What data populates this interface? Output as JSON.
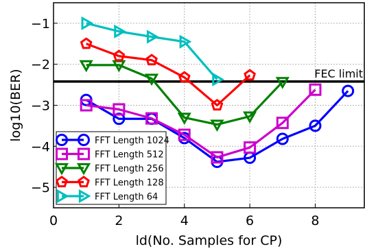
{
  "chart_data": {
    "type": "line",
    "title": "",
    "xlabel": "ld(No. Samples for CP)",
    "ylabel": "log10(BER)",
    "xlim": [
      0,
      9.5
    ],
    "ylim": [
      -5.5,
      -0.5
    ],
    "xticks": [
      "0",
      "2",
      "4",
      "6",
      "8"
    ],
    "yticks": [
      "−1",
      "−2",
      "−3",
      "−4",
      "−5"
    ],
    "grid": true,
    "legend_position": "lower-left",
    "reference_line": {
      "label": "FEC limit",
      "y": -2.42,
      "color": "#000000"
    },
    "series": [
      {
        "name": "FFT Length 1024",
        "color": "#0000ff",
        "marker": "circle",
        "x": [
          1,
          2,
          3,
          4,
          5,
          6,
          7,
          8,
          9
        ],
        "y": [
          -2.87,
          -3.33,
          -3.33,
          -3.8,
          -4.38,
          -4.28,
          -3.82,
          -3.5,
          -2.65
        ]
      },
      {
        "name": "FFT Length 512",
        "color": "#cc00cc",
        "marker": "square",
        "x": [
          1,
          2,
          3,
          4,
          5,
          6,
          7,
          8
        ],
        "y": [
          -3.0,
          -3.1,
          -3.32,
          -3.72,
          -4.27,
          -4.03,
          -3.43,
          -2.62
        ]
      },
      {
        "name": "FFT Length 256",
        "color": "#008000",
        "marker": "triangle-down",
        "x": [
          1,
          2,
          3,
          4,
          5,
          6,
          7
        ],
        "y": [
          -2.02,
          -2.02,
          -2.35,
          -3.3,
          -3.47,
          -3.27,
          -2.43
        ]
      },
      {
        "name": "FFT Length 128",
        "color": "#ff0000",
        "marker": "pentagon",
        "x": [
          1,
          2,
          3,
          4,
          5,
          6
        ],
        "y": [
          -1.5,
          -1.8,
          -1.9,
          -2.32,
          -3.0,
          -2.27
        ]
      },
      {
        "name": "FFT Length 64",
        "color": "#00bfbf",
        "marker": "triangle-right",
        "x": [
          1,
          2,
          3,
          4,
          5
        ],
        "y": [
          -1.0,
          -1.2,
          -1.33,
          -1.45,
          -2.37
        ]
      }
    ]
  }
}
